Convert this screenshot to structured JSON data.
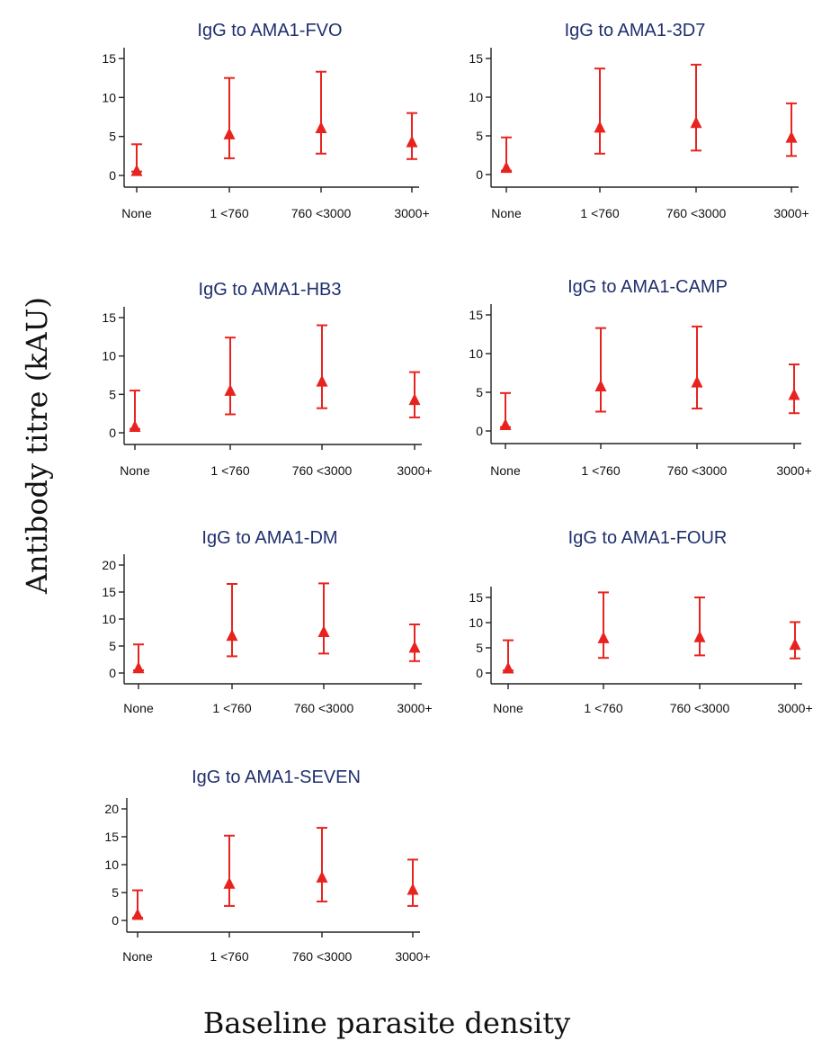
{
  "figure": {
    "ylabel": "Antibody titre (kAU)",
    "xlabel": "Baseline parasite density"
  },
  "chart_data": [
    {
      "type": "scatter",
      "title": "IgG to AMA1-FVO",
      "categories": [
        "None",
        "1 <760",
        "760 <3000",
        "3000+"
      ],
      "yticks": [
        0,
        5,
        10,
        15
      ],
      "ylim": [
        -1,
        16
      ],
      "points": [
        {
          "x": "None",
          "y": 0.5,
          "low": 0.5,
          "high": 4
        },
        {
          "x": "1 <760",
          "y": 5.2,
          "low": 2.2,
          "high": 12.5
        },
        {
          "x": "760 <3000",
          "y": 6,
          "low": 2.8,
          "high": 13.3
        },
        {
          "x": "3000+",
          "y": 4.2,
          "low": 2.1,
          "high": 8
        }
      ]
    },
    {
      "type": "scatter",
      "title": "IgG to AMA1-3D7",
      "categories": [
        "None",
        "1 <760",
        "760 <3000",
        "3000+"
      ],
      "yticks": [
        0,
        5,
        10,
        15
      ],
      "ylim": [
        -1,
        16
      ],
      "points": [
        {
          "x": "None",
          "y": 0.8,
          "low": 0.5,
          "high": 4.8
        },
        {
          "x": "1 <760",
          "y": 6,
          "low": 2.7,
          "high": 13.7
        },
        {
          "x": "760 <3000",
          "y": 6.6,
          "low": 3.1,
          "high": 14.2
        },
        {
          "x": "3000+",
          "y": 4.7,
          "low": 2.4,
          "high": 9.2
        }
      ]
    },
    {
      "type": "scatter",
      "title": "IgG to AMA1-HB3",
      "categories": [
        "None",
        "1 <760",
        "760 <3000",
        "3000+"
      ],
      "yticks": [
        0,
        5,
        10,
        15
      ],
      "ylim": [
        -1,
        16
      ],
      "points": [
        {
          "x": "None",
          "y": 0.7,
          "low": 0.5,
          "high": 5.5
        },
        {
          "x": "1 <760",
          "y": 5.4,
          "low": 2.4,
          "high": 12.4
        },
        {
          "x": "760 <3000",
          "y": 6.6,
          "low": 3.2,
          "high": 14
        },
        {
          "x": "3000+",
          "y": 4.2,
          "low": 2,
          "high": 7.9
        }
      ]
    },
    {
      "type": "scatter",
      "title": "IgG to AMA1-CAMP",
      "categories": [
        "None",
        "1 <760",
        "760 <3000",
        "3000+"
      ],
      "yticks": [
        0,
        5,
        10,
        15
      ],
      "ylim": [
        -1,
        16
      ],
      "points": [
        {
          "x": "None",
          "y": 0.7,
          "low": 0.5,
          "high": 4.9
        },
        {
          "x": "1 <760",
          "y": 5.7,
          "low": 2.5,
          "high": 13.3
        },
        {
          "x": "760 <3000",
          "y": 6.2,
          "low": 2.9,
          "high": 13.5
        },
        {
          "x": "3000+",
          "y": 4.6,
          "low": 2.3,
          "high": 8.6
        }
      ]
    },
    {
      "type": "scatter",
      "title": "IgG to AMA1-DM",
      "categories": [
        "None",
        "1 <760",
        "760 <3000",
        "3000+"
      ],
      "yticks": [
        0,
        5,
        10,
        15,
        20
      ],
      "ylim": [
        -1.5,
        21.5
      ],
      "points": [
        {
          "x": "None",
          "y": 0.8,
          "low": 0.5,
          "high": 5.3
        },
        {
          "x": "1 <760",
          "y": 6.8,
          "low": 3.1,
          "high": 16.5
        },
        {
          "x": "760 <3000",
          "y": 7.5,
          "low": 3.6,
          "high": 16.6
        },
        {
          "x": "3000+",
          "y": 4.6,
          "low": 2.2,
          "high": 9
        }
      ]
    },
    {
      "type": "scatter",
      "title": "IgG to AMA1-FOUR",
      "categories": [
        "None",
        "1 <760",
        "760 <3000",
        "3000+"
      ],
      "yticks": [
        0,
        5,
        10,
        15
      ],
      "ylim": [
        -1,
        17
      ],
      "points": [
        {
          "x": "None",
          "y": 0.8,
          "low": 0.5,
          "high": 6.5
        },
        {
          "x": "1 <760",
          "y": 6.8,
          "low": 3,
          "high": 16
        },
        {
          "x": "760 <3000",
          "y": 7,
          "low": 3.5,
          "high": 15
        },
        {
          "x": "3000+",
          "y": 5.5,
          "low": 2.9,
          "high": 10.1
        }
      ]
    },
    {
      "type": "scatter",
      "title": "IgG to AMA1-SEVEN",
      "categories": [
        "None",
        "1 <760",
        "760 <3000",
        "3000+"
      ],
      "yticks": [
        0,
        5,
        10,
        15,
        20
      ],
      "ylim": [
        -1.5,
        21.5
      ],
      "points": [
        {
          "x": "None",
          "y": 0.9,
          "low": 0.5,
          "high": 5.4
        },
        {
          "x": "1 <760",
          "y": 6.5,
          "low": 2.6,
          "high": 15.2
        },
        {
          "x": "760 <3000",
          "y": 7.6,
          "low": 3.4,
          "high": 16.6
        },
        {
          "x": "3000+",
          "y": 5.4,
          "low": 2.6,
          "high": 10.9
        }
      ]
    }
  ]
}
